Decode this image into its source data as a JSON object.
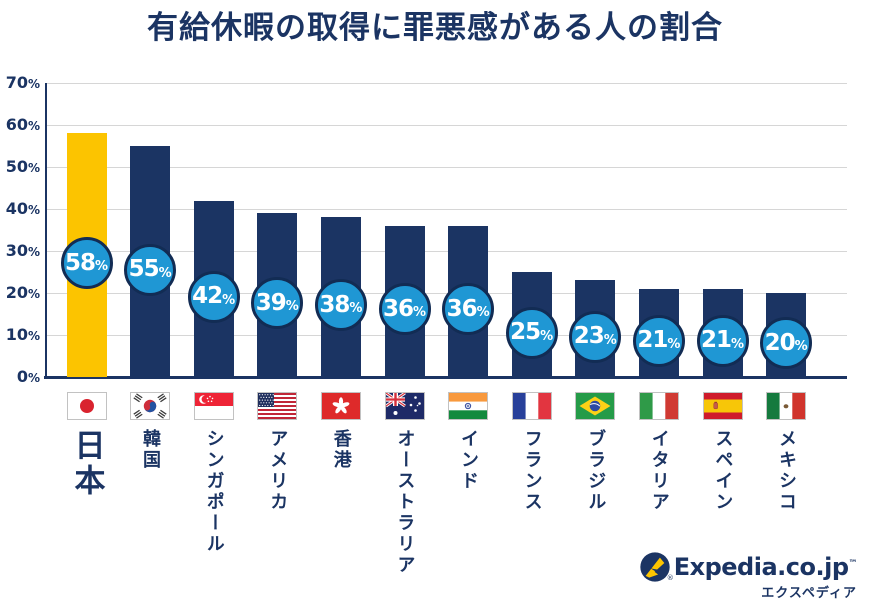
{
  "title": "有給休暇の取得に罪悪感がある人の割合",
  "chart_data": {
    "type": "bar",
    "title": "有給休暇の取得に罪悪感がある人の割合",
    "unit": "%",
    "categories": [
      "日本",
      "韓国",
      "シンガポール",
      "アメリカ",
      "香港",
      "オーストラリア",
      "インド",
      "フランス",
      "ブラジル",
      "イタリア",
      "スペイン",
      "メキシコ"
    ],
    "values": [
      58,
      55,
      42,
      39,
      38,
      36,
      36,
      25,
      23,
      21,
      21,
      20
    ],
    "flag_icons": [
      "japan-flag-icon",
      "south-korea-flag-icon",
      "singapore-flag-icon",
      "usa-flag-icon",
      "hong-kong-flag-icon",
      "australia-flag-icon",
      "india-flag-icon",
      "france-flag-icon",
      "brazil-flag-icon",
      "italy-flag-icon",
      "spain-flag-icon",
      "mexico-flag-icon"
    ],
    "highlight_index": 0,
    "ylim": [
      0,
      70
    ],
    "yticks": [
      0,
      10,
      20,
      30,
      40,
      50,
      60,
      70
    ],
    "grid": true,
    "legend": false,
    "colors": {
      "bar": "#1b3463",
      "highlight_bar": "#fcc400",
      "badge_fill": "#1f97d4",
      "badge_border": "#122c54",
      "value_text": "#ffffff",
      "axis": "#1b3463",
      "gridline": "#d6d6d6",
      "label_text": "#1b3463"
    }
  },
  "footer": {
    "brand": "Expedia.co.jp",
    "trademark": "™",
    "registered": "®",
    "brand_sub": "エクスペディア",
    "plane_icon_colors": {
      "circle": "#1b3463",
      "plane": "#fdc500"
    }
  }
}
